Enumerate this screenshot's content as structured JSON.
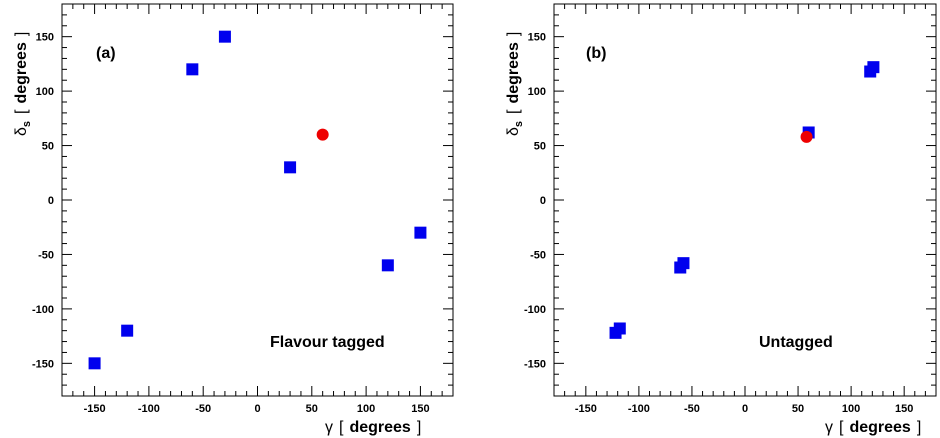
{
  "chart_data": [
    {
      "type": "scatter",
      "panel_label": "(a)",
      "annotation": "Flavour tagged",
      "xlabel": {
        "symbol": "γ",
        "open": "[",
        "unit": "degrees",
        "close": "]"
      },
      "ylabel": {
        "symbol": "δ",
        "subscript": "s",
        "open": "[",
        "unit": "degrees",
        "close": "]"
      },
      "xlim": [
        -180,
        180
      ],
      "ylim": [
        -180,
        180
      ],
      "xticks": [
        -150,
        -100,
        -50,
        0,
        50,
        100,
        150
      ],
      "yticks": [
        -150,
        -100,
        -50,
        0,
        50,
        100,
        150
      ],
      "grid": false,
      "series": [
        {
          "marker": "square",
          "color": "#0000ee",
          "x": [
            -150,
            -120,
            -60,
            -30,
            30,
            120,
            150
          ],
          "y": [
            -150,
            -120,
            120,
            150,
            30,
            -60,
            -30
          ]
        },
        {
          "marker": "circle",
          "color": "#ee0000",
          "x": [
            60
          ],
          "y": [
            60
          ]
        }
      ]
    },
    {
      "type": "scatter",
      "panel_label": "(b)",
      "annotation": "Untagged",
      "xlabel": {
        "symbol": "γ",
        "open": "[",
        "unit": "degrees",
        "close": "]"
      },
      "ylabel": {
        "symbol": "δ",
        "subscript": "s",
        "open": "[",
        "unit": "degrees",
        "close": "]"
      },
      "xlim": [
        -180,
        180
      ],
      "ylim": [
        -180,
        180
      ],
      "xticks": [
        -150,
        -100,
        -50,
        0,
        50,
        100,
        150
      ],
      "yticks": [
        -150,
        -100,
        -50,
        0,
        50,
        100,
        150
      ],
      "grid": false,
      "series": [
        {
          "marker": "square",
          "color": "#0000ee",
          "x": [
            -122,
            -118,
            -61,
            -58,
            60,
            118,
            121
          ],
          "y": [
            -122,
            -118,
            -62,
            -58,
            62,
            118,
            122
          ]
        },
        {
          "marker": "circle",
          "color": "#ee0000",
          "x": [
            58
          ],
          "y": [
            58
          ]
        }
      ]
    }
  ]
}
